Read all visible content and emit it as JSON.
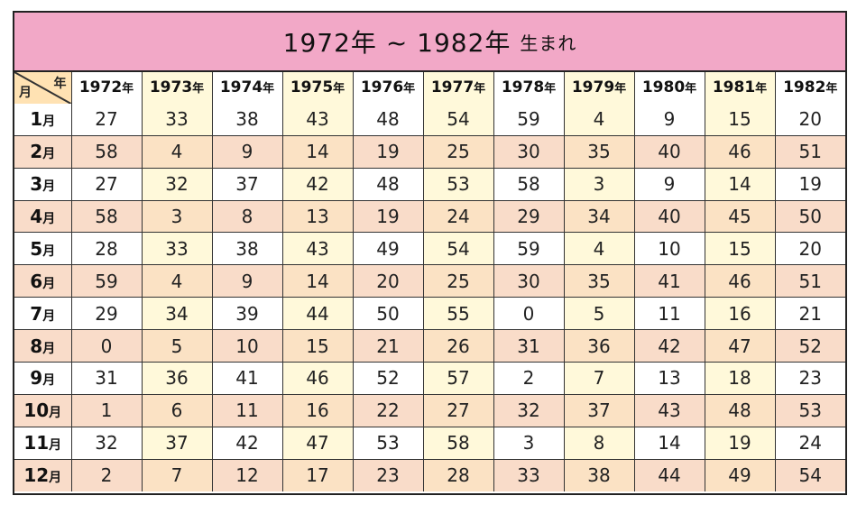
{
  "title": {
    "main": "1972年 ~ 1982年",
    "sub": "生まれ"
  },
  "corner": {
    "year_label": "年",
    "month_label": "月"
  },
  "year_suffix": "年",
  "month_suffix": "月",
  "colors": {
    "title_bg": "#f2a8c7",
    "corner_bg": "#ffe2b3",
    "alt_column": "#fff9da",
    "alt_row": "#f9dcc9"
  },
  "years": [
    "1972",
    "1973",
    "1974",
    "1975",
    "1976",
    "1977",
    "1978",
    "1979",
    "1980",
    "1981",
    "1982"
  ],
  "months": [
    "1",
    "2",
    "3",
    "4",
    "5",
    "6",
    "7",
    "8",
    "9",
    "10",
    "11",
    "12"
  ],
  "rows": [
    [
      "27",
      "33",
      "38",
      "43",
      "48",
      "54",
      "59",
      "4",
      "9",
      "15",
      "20"
    ],
    [
      "58",
      "4",
      "9",
      "14",
      "19",
      "25",
      "30",
      "35",
      "40",
      "46",
      "51"
    ],
    [
      "27",
      "32",
      "37",
      "42",
      "48",
      "53",
      "58",
      "3",
      "9",
      "14",
      "19"
    ],
    [
      "58",
      "3",
      "8",
      "13",
      "19",
      "24",
      "29",
      "34",
      "40",
      "45",
      "50"
    ],
    [
      "28",
      "33",
      "38",
      "43",
      "49",
      "54",
      "59",
      "4",
      "10",
      "15",
      "20"
    ],
    [
      "59",
      "4",
      "9",
      "14",
      "20",
      "25",
      "30",
      "35",
      "41",
      "46",
      "51"
    ],
    [
      "29",
      "34",
      "39",
      "44",
      "50",
      "55",
      "0",
      "5",
      "11",
      "16",
      "21"
    ],
    [
      "0",
      "5",
      "10",
      "15",
      "21",
      "26",
      "31",
      "36",
      "42",
      "47",
      "52"
    ],
    [
      "31",
      "36",
      "41",
      "46",
      "52",
      "57",
      "2",
      "7",
      "13",
      "18",
      "23"
    ],
    [
      "1",
      "6",
      "11",
      "16",
      "22",
      "27",
      "32",
      "37",
      "43",
      "48",
      "53"
    ],
    [
      "32",
      "37",
      "42",
      "47",
      "53",
      "58",
      "3",
      "8",
      "14",
      "19",
      "24"
    ],
    [
      "2",
      "7",
      "12",
      "17",
      "23",
      "28",
      "33",
      "38",
      "44",
      "49",
      "54"
    ]
  ]
}
